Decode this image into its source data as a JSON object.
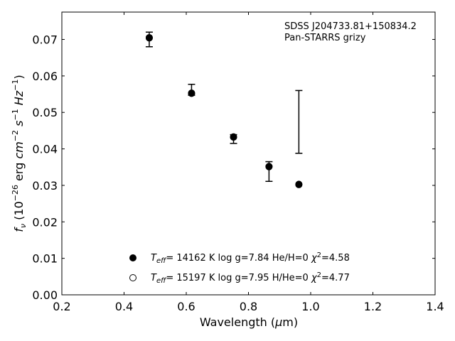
{
  "chart_data": {
    "type": "scatter",
    "xlabel": "Wavelength (μm)",
    "ylabel": "fν (10−26 erg cm−2 s−1 Hz−1)",
    "xlim": [
      0.2,
      1.4
    ],
    "ylim": [
      0.0,
      0.0775
    ],
    "x_ticks": [
      "0.2",
      "0.4",
      "0.6",
      "0.8",
      "1.0",
      "1.2",
      "1.4"
    ],
    "y_ticks": [
      "0.00",
      "0.01",
      "0.02",
      "0.03",
      "0.04",
      "0.05",
      "0.06",
      "0.07"
    ],
    "annotation": [
      "SDSS J204733.81+150834.2",
      "Pan-STARRS grizy"
    ],
    "observed": [
      {
        "x": 0.481,
        "y": 0.07,
        "yerr": 0.002
      },
      {
        "x": 0.617,
        "y": 0.0562,
        "yerr": 0.0015
      },
      {
        "x": 0.752,
        "y": 0.0427,
        "yerr": 0.0012
      },
      {
        "x": 0.866,
        "y": 0.0338,
        "yerr": 0.0027
      },
      {
        "x": 0.962,
        "y": 0.0474,
        "yerr": 0.0086
      }
    ],
    "series": [
      {
        "legend": {
          "teff": "14162 K",
          "logg": "log g=7.84",
          "comp": "He/H=0",
          "chi2": "=4.58"
        },
        "marker": "filled",
        "x": [
          0.481,
          0.617,
          0.752,
          0.866,
          0.962
        ],
        "y": [
          0.0704,
          0.0552,
          0.0432,
          0.0351,
          0.0302
        ]
      },
      {
        "legend": {
          "teff": "15197 K",
          "logg": "log g=7.95",
          "comp": "H/He=0",
          "chi2": "=4.77"
        },
        "marker": "open",
        "x": [
          0.481,
          0.617,
          0.752,
          0.866,
          0.962
        ],
        "y": [
          0.0705,
          0.0553,
          0.0433,
          0.0352,
          0.0303
        ]
      }
    ],
    "grid": false,
    "legend_position": "bottom-center"
  }
}
